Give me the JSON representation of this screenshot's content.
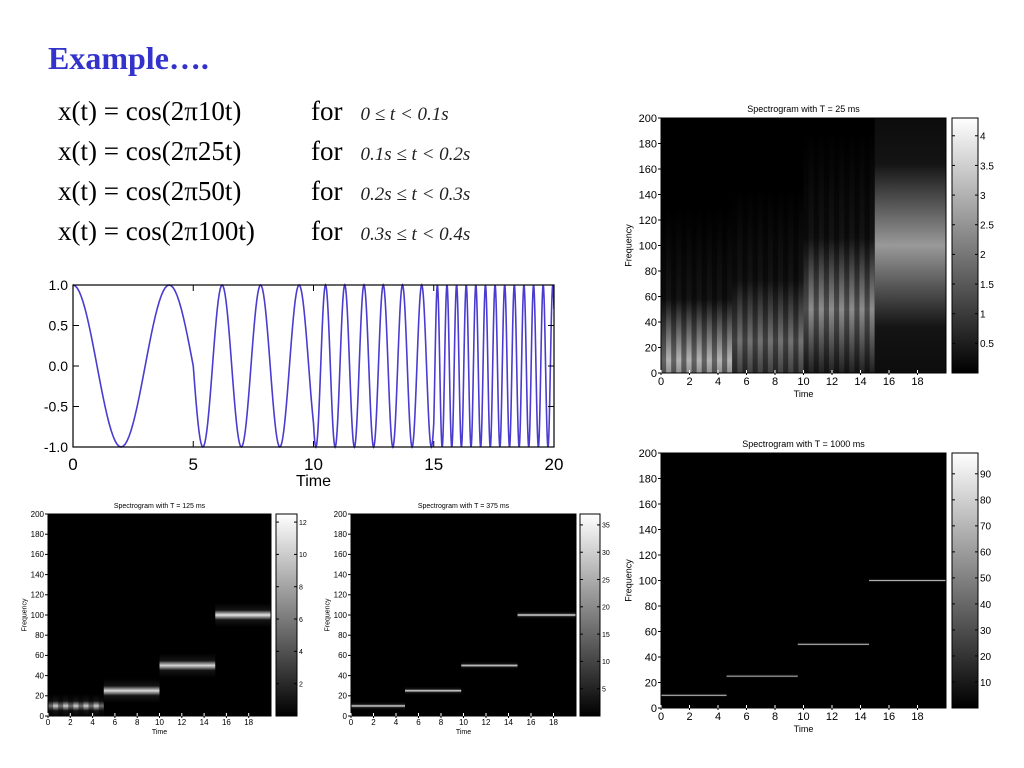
{
  "title": "Example….",
  "equations": [
    {
      "lhs": "x(t) = cos(2π10t)",
      "for": "for",
      "cond": "0 ≤ t < 0.1s"
    },
    {
      "lhs": "x(t) = cos(2π25t)",
      "for": "for",
      "cond": "0.1s ≤ t < 0.2s"
    },
    {
      "lhs": "x(t) = cos(2π50t)",
      "for": "for",
      "cond": "0.2s ≤ t < 0.3s"
    },
    {
      "lhs": "x(t) = cos(2π100t)",
      "for": "for",
      "cond": "0.3s ≤ t < 0.4s"
    }
  ],
  "colors": {
    "title": "#3333cc",
    "signal": "#4a3ccf"
  },
  "chart_data": [
    {
      "type": "line",
      "title": "",
      "xlabel": "Time",
      "ylabel": "",
      "xlim": [
        0,
        20
      ],
      "ylim": [
        -1.0,
        1.0
      ],
      "x_ticks": [
        "0",
        "5",
        "10",
        "15",
        "20"
      ],
      "y_ticks": [
        "1.0",
        "0.5",
        "0.0",
        "-0.5",
        "-1.0"
      ],
      "series": [
        {
          "segments": [
            {
              "x_start": 0,
              "x_end": 5,
              "cycles": 1.25
            },
            {
              "x_start": 5,
              "x_end": 10,
              "cycles": 3.125
            },
            {
              "x_start": 10,
              "x_end": 15,
              "cycles": 6.25
            },
            {
              "x_start": 15,
              "x_end": 20,
              "cycles": 12.5
            }
          ]
        }
      ]
    },
    {
      "type": "heatmap",
      "title": "Spectrogram with T = 25 ms",
      "xlabel": "Time",
      "ylabel": "Frequency",
      "xlim": [
        0,
        20
      ],
      "ylim": [
        0,
        200
      ],
      "x_ticks": [
        "0",
        "2",
        "4",
        "6",
        "8",
        "10",
        "12",
        "14",
        "16",
        "18"
      ],
      "y_ticks": [
        "0",
        "20",
        "40",
        "60",
        "80",
        "100",
        "120",
        "140",
        "160",
        "180",
        "200"
      ],
      "colorbar_ticks": [
        "0.5",
        "1",
        "1.5",
        "2",
        "2.5",
        "3",
        "3.5",
        "4"
      ],
      "colorbar_range": [
        0,
        4.3
      ],
      "segments": [
        {
          "x_start": 0,
          "x_end": 5,
          "freq": 10,
          "half_width": 120,
          "level": 0.7,
          "striped": true
        },
        {
          "x_start": 5,
          "x_end": 10,
          "freq": 25,
          "half_width": 120,
          "level": 0.45,
          "striped": true
        },
        {
          "x_start": 10,
          "x_end": 15,
          "freq": 50,
          "half_width": 140,
          "level": 0.55,
          "striped": true
        },
        {
          "x_start": 15,
          "x_end": 20,
          "freq": 100,
          "half_width": 160,
          "level": 0.6,
          "striped": false
        }
      ]
    },
    {
      "type": "heatmap",
      "title": "Spectrogram with T = 125 ms",
      "xlabel": "Time",
      "ylabel": "Frequency",
      "xlim": [
        0,
        20
      ],
      "ylim": [
        0,
        200
      ],
      "x_ticks": [
        "0",
        "2",
        "4",
        "6",
        "8",
        "10",
        "12",
        "14",
        "16",
        "18"
      ],
      "y_ticks": [
        "0",
        "20",
        "40",
        "60",
        "80",
        "100",
        "120",
        "140",
        "160",
        "180",
        "200"
      ],
      "colorbar_ticks": [
        "2",
        "4",
        "6",
        "8",
        "10",
        "12"
      ],
      "colorbar_range": [
        0,
        12.5
      ],
      "segments": [
        {
          "x_start": 0,
          "x_end": 5,
          "freq": 10,
          "half_width": 12,
          "level": 0.8,
          "striped": true
        },
        {
          "x_start": 5,
          "x_end": 10,
          "freq": 25,
          "half_width": 12,
          "level": 0.85,
          "striped": false
        },
        {
          "x_start": 10,
          "x_end": 15,
          "freq": 50,
          "half_width": 12,
          "level": 0.85,
          "striped": false
        },
        {
          "x_start": 15,
          "x_end": 20,
          "freq": 100,
          "half_width": 12,
          "level": 0.9,
          "striped": false
        }
      ]
    },
    {
      "type": "heatmap",
      "title": "Spectrogram with T = 375 ms",
      "xlabel": "Time",
      "ylabel": "Frequency",
      "xlim": [
        0,
        20
      ],
      "ylim": [
        0,
        200
      ],
      "x_ticks": [
        "0",
        "2",
        "4",
        "6",
        "8",
        "10",
        "12",
        "14",
        "16",
        "18"
      ],
      "y_ticks": [
        "0",
        "20",
        "40",
        "60",
        "80",
        "100",
        "120",
        "140",
        "160",
        "180",
        "200"
      ],
      "colorbar_ticks": [
        "5",
        "10",
        "15",
        "20",
        "25",
        "30",
        "35"
      ],
      "colorbar_range": [
        0,
        37
      ],
      "segments": [
        {
          "x_start": 0,
          "x_end": 4.8,
          "freq": 10,
          "half_width": 4,
          "level": 0.85,
          "striped": false
        },
        {
          "x_start": 4.8,
          "x_end": 9.8,
          "freq": 25,
          "half_width": 4,
          "level": 0.85,
          "striped": false
        },
        {
          "x_start": 9.8,
          "x_end": 14.8,
          "freq": 50,
          "half_width": 4,
          "level": 0.85,
          "striped": false
        },
        {
          "x_start": 14.8,
          "x_end": 20,
          "freq": 100,
          "half_width": 4,
          "level": 0.9,
          "striped": false
        }
      ]
    },
    {
      "type": "heatmap",
      "title": "Spectrogram with T = 1000 ms",
      "xlabel": "Time",
      "ylabel": "Frequency",
      "xlim": [
        0,
        20
      ],
      "ylim": [
        0,
        200
      ],
      "x_ticks": [
        "0",
        "2",
        "4",
        "6",
        "8",
        "10",
        "12",
        "14",
        "16",
        "18"
      ],
      "y_ticks": [
        "0",
        "20",
        "40",
        "60",
        "80",
        "100",
        "120",
        "140",
        "160",
        "180",
        "200"
      ],
      "colorbar_ticks": [
        "10",
        "20",
        "30",
        "40",
        "50",
        "60",
        "70",
        "80",
        "90"
      ],
      "colorbar_range": [
        0,
        98
      ],
      "segments": [
        {
          "x_start": 0,
          "x_end": 4.6,
          "freq": 10,
          "half_width": 1.6,
          "level": 0.85,
          "striped": false
        },
        {
          "x_start": 4.6,
          "x_end": 9.6,
          "freq": 25,
          "half_width": 1.6,
          "level": 0.85,
          "striped": false
        },
        {
          "x_start": 9.6,
          "x_end": 14.6,
          "freq": 50,
          "half_width": 1.6,
          "level": 0.85,
          "striped": false
        },
        {
          "x_start": 14.6,
          "x_end": 20,
          "freq": 100,
          "half_width": 1.6,
          "level": 0.95,
          "striped": false
        }
      ]
    }
  ]
}
